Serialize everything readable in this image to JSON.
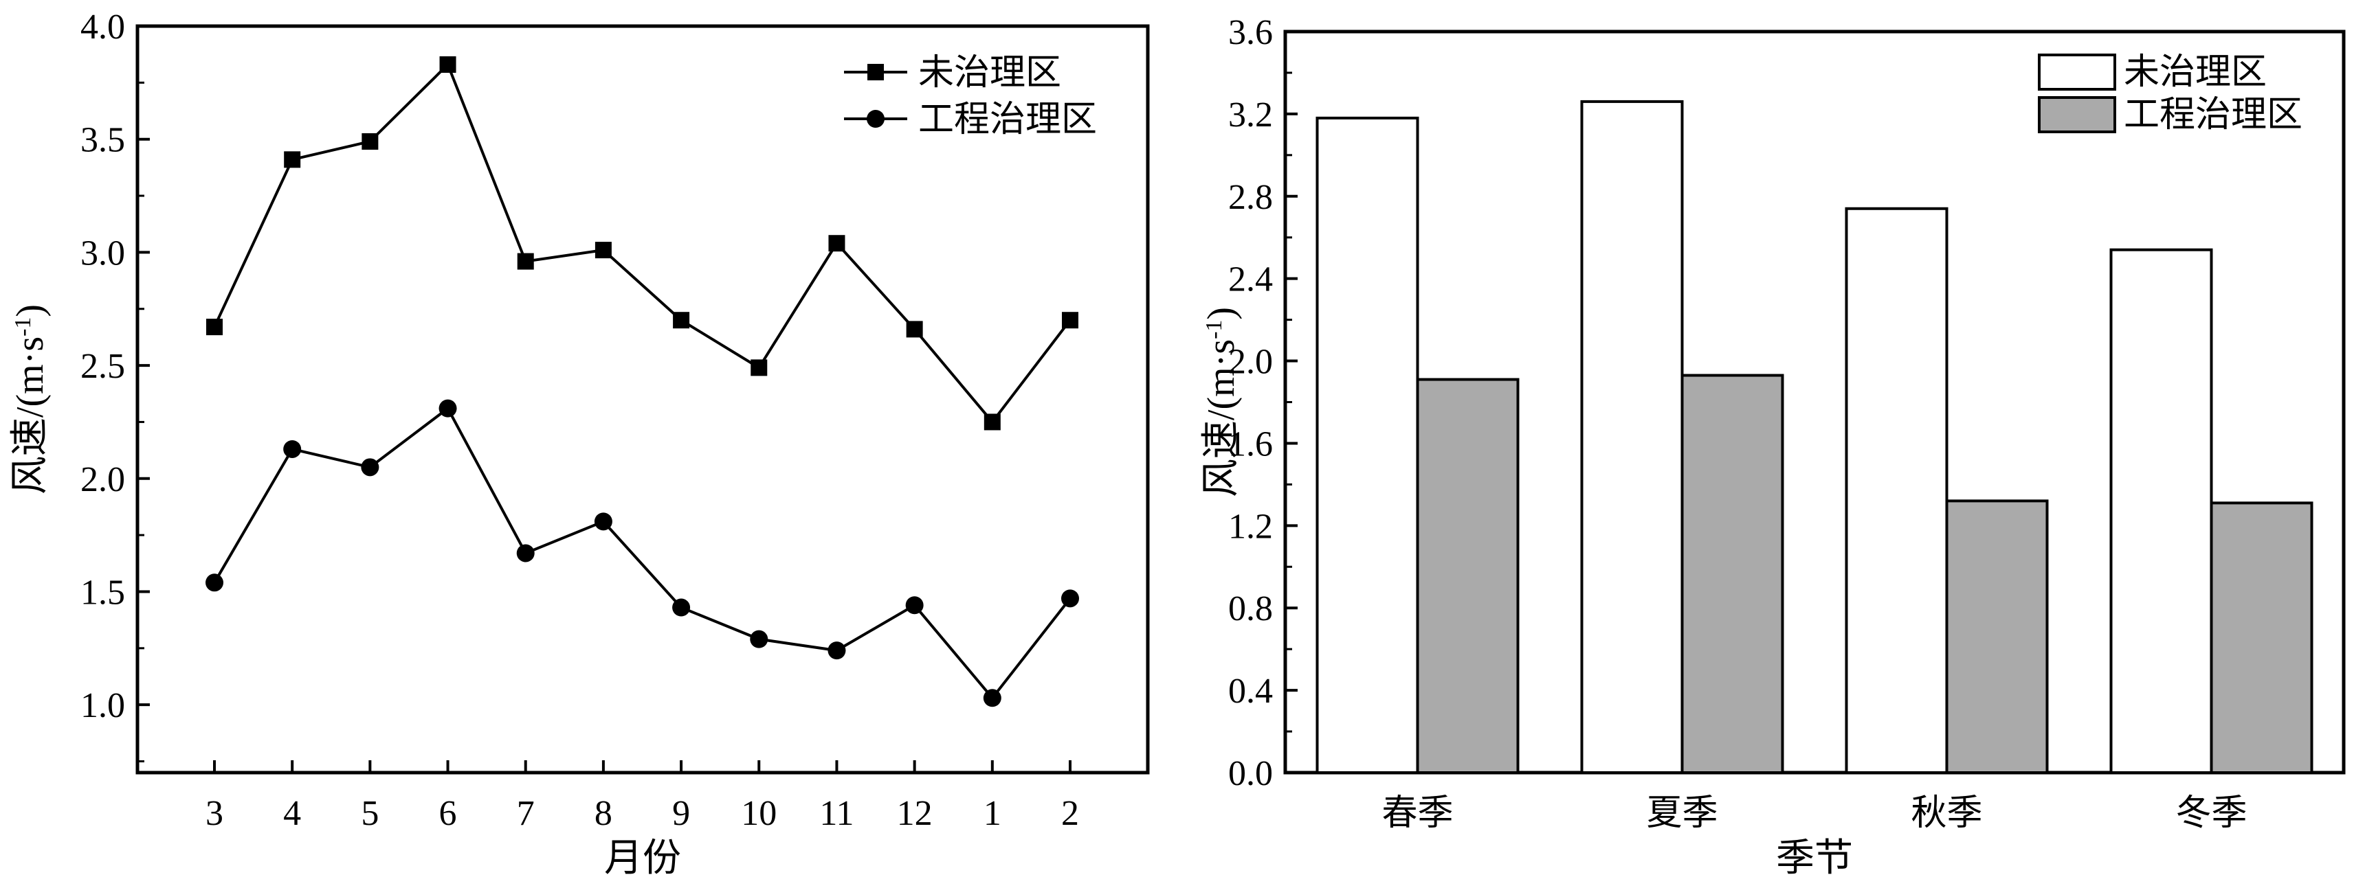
{
  "chart_data": [
    {
      "type": "line",
      "title": "",
      "xlabel": "月份",
      "ylabel": "风速/(m·s-1)",
      "ylabel_main": "风速/(m·s",
      "ylabel_sup": "-1",
      "ylabel_tail": ")",
      "categories": [
        "3",
        "4",
        "5",
        "6",
        "7",
        "8",
        "9",
        "10",
        "11",
        "12",
        "1",
        "2"
      ],
      "ylim": [
        0.7,
        4.0
      ],
      "yticks": [
        "1.0",
        "1.5",
        "2.0",
        "2.5",
        "3.0",
        "3.5",
        "4.0"
      ],
      "grid": false,
      "legend_position": "top-right",
      "series": [
        {
          "name": "未治理区",
          "marker": "square",
          "values": [
            2.67,
            3.41,
            3.49,
            3.83,
            2.96,
            3.01,
            2.7,
            2.49,
            3.04,
            2.66,
            2.25,
            2.7
          ]
        },
        {
          "name": "工程治理区",
          "marker": "circle",
          "values": [
            1.54,
            2.13,
            2.05,
            2.31,
            1.67,
            1.81,
            1.43,
            1.29,
            1.24,
            1.44,
            1.03,
            1.47
          ]
        }
      ]
    },
    {
      "type": "bar",
      "title": "",
      "xlabel": "季节",
      "ylabel": "风速/(m·s-1)",
      "ylabel_main": "风速/(m·s",
      "ylabel_sup": "-1",
      "ylabel_tail": ")",
      "categories": [
        "春季",
        "夏季",
        "秋季",
        "冬季"
      ],
      "ylim": [
        0.0,
        3.6
      ],
      "yticks": [
        "0.0",
        "0.4",
        "0.8",
        "1.2",
        "1.6",
        "2.0",
        "2.4",
        "2.8",
        "3.2",
        "3.6"
      ],
      "grid": false,
      "legend_position": "top-right",
      "series": [
        {
          "name": "未治理区",
          "color": "#ffffff",
          "values": [
            3.18,
            3.26,
            2.74,
            2.54
          ]
        },
        {
          "name": "工程治理区",
          "color": "#aaaaaa",
          "values": [
            1.91,
            1.93,
            1.32,
            1.31
          ]
        }
      ]
    }
  ]
}
